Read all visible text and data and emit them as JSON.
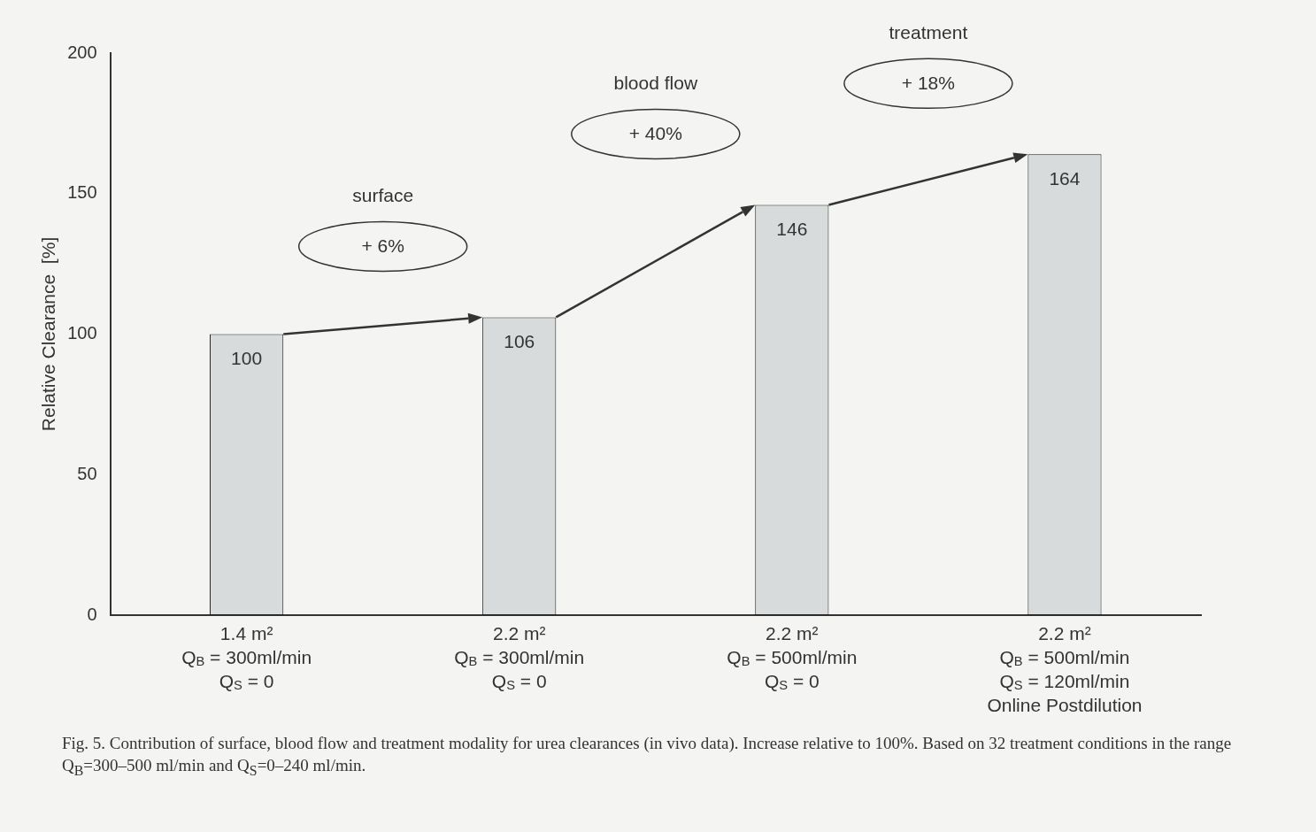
{
  "chart_data": {
    "type": "bar",
    "ylabel": "Relative Clearance  [%]",
    "categories": [
      "1.4 m²\nQ$_{B}$ = 300ml/min\nQ$_{S}$ = 0",
      "2.2 m²\nQ$_{B}$ = 300ml/min\nQ$_{S}$ = 0",
      "2.2 m²\nQ$_{B}$ = 500ml/min\nQ$_{S}$ = 0",
      "2.2 m²\nQ$_{B}$ = 500ml/min\nQ$_{S}$ = 120ml/min\nOnline Postdilution"
    ],
    "values": [
      100,
      106,
      146,
      164
    ],
    "color": "#d8dbdb",
    "data_labels": true,
    "ylim": [
      0,
      200
    ],
    "yticks": [
      0,
      50,
      100,
      150,
      200
    ],
    "grid": false,
    "legend": false,
    "annotations": [
      "surface",
      "+ 6%",
      "blood flow",
      "+ 40%",
      "treatment",
      "+ 18%",
      "Fig. 5. Contribution of surface, blood flow and treatment modality for urea clearances (in vivo data). Increase relative to 100%. Based on 32 treatment conditions in the range Q$_{B}$=300–500 ml/min and Q$_{S}$=0–240 ml/min."
    ]
  }
}
